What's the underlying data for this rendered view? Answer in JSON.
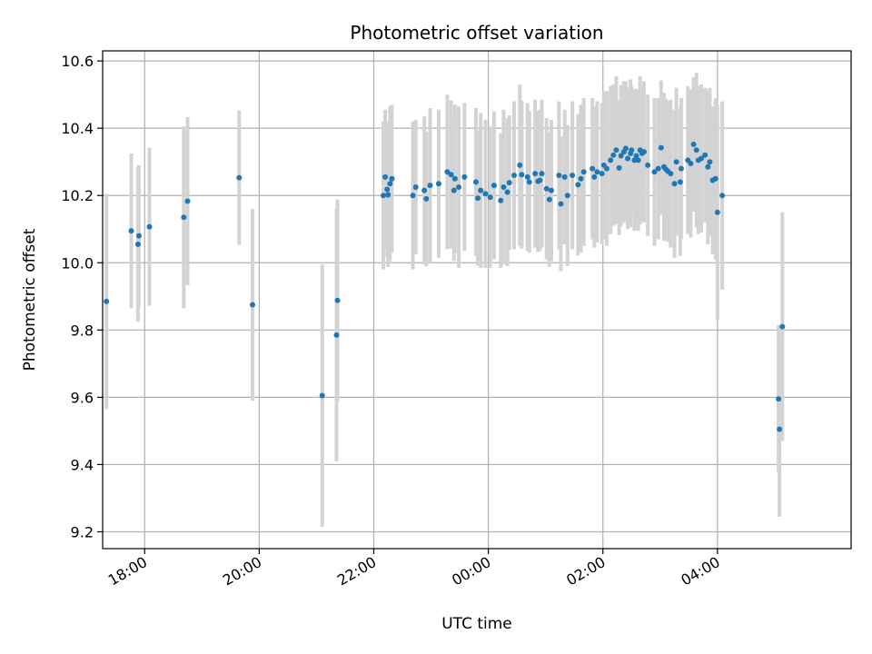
{
  "chart_data": {
    "type": "scatter",
    "title": "Photometric offset variation",
    "xlabel": "UTC time",
    "ylabel": "Photometric offset",
    "x_ticks": [
      "18:00",
      "20:00",
      "22:00",
      "00:00",
      "02:00",
      "04:00"
    ],
    "y_ticks": [
      "9.2",
      "9.4",
      "9.6",
      "9.8",
      "10.0",
      "10.2",
      "10.4",
      "10.6"
    ],
    "xlim": [
      "17:16",
      "06:20"
    ],
    "ylim": [
      9.15,
      10.63
    ],
    "grid": true,
    "point_color": "#1f77b4",
    "errorbar_color": "#d3d3d3",
    "series": [
      {
        "x": [
          "17:20",
          "17:46",
          "17:53",
          "17:54",
          "18:05",
          "18:41",
          "18:45",
          "19:39",
          "19:53",
          "21:06",
          "21:21",
          "21:22",
          "22:10",
          "22:12",
          "22:14",
          "22:15",
          "22:17",
          "22:19",
          "22:41",
          "22:44",
          "22:53",
          "22:55",
          "22:59",
          "23:08",
          "23:17",
          "23:21",
          "23:24",
          "23:25",
          "23:29",
          "23:35",
          "23:47",
          "23:49",
          "23:52",
          "23:57",
          "24:02",
          "24:06",
          "24:13",
          "24:16",
          "24:20",
          "24:22",
          "24:27",
          "24:33",
          "24:35",
          "24:41",
          "24:43",
          "24:49",
          "24:52",
          "24:54",
          "24:56",
          "25:01",
          "25:04",
          "25:06",
          "25:14",
          "25:16",
          "25:20",
          "25:23",
          "25:28",
          "25:34",
          "25:37",
          "25:40",
          "25:49",
          "25:51",
          "25:54",
          "25:59",
          "26:01",
          "26:04",
          "26:08",
          "26:11",
          "26:14",
          "26:17",
          "26:19",
          "26:22",
          "26:24",
          "26:26",
          "26:29",
          "26:30",
          "26:33",
          "26:35",
          "26:37",
          "26:39",
          "26:41",
          "26:43",
          "26:47",
          "26:54",
          "26:58",
          "27:01",
          "27:04",
          "27:06",
          "27:08",
          "27:11",
          "27:15",
          "27:17",
          "27:21",
          "27:22",
          "27:29",
          "27:32",
          "27:35",
          "27:38",
          "27:40",
          "27:43",
          "27:47",
          "27:50",
          "27:52",
          "27:55",
          "27:58",
          "28:00",
          "28:05",
          "29:04",
          "29:05",
          "29:08"
        ],
        "y": [
          9.885,
          10.095,
          10.055,
          10.08,
          10.107,
          10.135,
          10.183,
          10.253,
          9.875,
          9.605,
          9.785,
          9.888,
          10.2,
          10.255,
          10.218,
          10.202,
          10.235,
          10.25,
          10.2,
          10.225,
          10.215,
          10.19,
          10.23,
          10.235,
          10.27,
          10.262,
          10.215,
          10.25,
          10.225,
          10.255,
          10.24,
          10.192,
          10.215,
          10.205,
          10.195,
          10.23,
          10.185,
          10.225,
          10.21,
          10.238,
          10.26,
          10.29,
          10.262,
          10.255,
          10.24,
          10.265,
          10.242,
          10.245,
          10.265,
          10.22,
          10.188,
          10.215,
          10.26,
          10.175,
          10.255,
          10.2,
          10.26,
          10.232,
          10.25,
          10.27,
          10.28,
          10.255,
          10.27,
          10.265,
          10.29,
          10.28,
          10.305,
          10.32,
          10.335,
          10.282,
          10.318,
          10.33,
          10.34,
          10.31,
          10.325,
          10.335,
          10.305,
          10.318,
          10.305,
          10.335,
          10.325,
          10.33,
          10.29,
          10.27,
          10.28,
          10.342,
          10.285,
          10.278,
          10.272,
          10.265,
          10.235,
          10.3,
          10.24,
          10.28,
          10.305,
          10.295,
          10.352,
          10.335,
          10.305,
          10.31,
          10.32,
          10.285,
          10.3,
          10.245,
          10.25,
          10.15,
          10.2,
          9.595,
          9.505,
          9.81
        ],
        "yerr": [
          0.32,
          0.23,
          0.23,
          0.21,
          0.235,
          0.27,
          0.25,
          0.2,
          0.285,
          0.39,
          0.375,
          0.3,
          0.22,
          0.2,
          0.2,
          0.215,
          0.23,
          0.22,
          0.22,
          0.2,
          0.22,
          0.2,
          0.23,
          0.22,
          0.23,
          0.22,
          0.21,
          0.22,
          0.24,
          0.22,
          0.22,
          0.2,
          0.23,
          0.22,
          0.21,
          0.22,
          0.2,
          0.23,
          0.22,
          0.2,
          0.22,
          0.24,
          0.22,
          0.22,
          0.21,
          0.22,
          0.21,
          0.21,
          0.22,
          0.21,
          0.2,
          0.21,
          0.22,
          0.2,
          0.2,
          0.21,
          0.22,
          0.21,
          0.22,
          0.22,
          0.21,
          0.21,
          0.21,
          0.21,
          0.22,
          0.23,
          0.22,
          0.21,
          0.22,
          0.2,
          0.21,
          0.21,
          0.2,
          0.21,
          0.22,
          0.19,
          0.21,
          0.2,
          0.21,
          0.22,
          0.2,
          0.21,
          0.21,
          0.22,
          0.21,
          0.2,
          0.22,
          0.21,
          0.21,
          0.22,
          0.22,
          0.22,
          0.22,
          0.21,
          0.22,
          0.22,
          0.2,
          0.23,
          0.22,
          0.22,
          0.2,
          0.23,
          0.22,
          0.22,
          0.24,
          0.32,
          0.28,
          0.22,
          0.26,
          0.34
        ]
      }
    ]
  }
}
